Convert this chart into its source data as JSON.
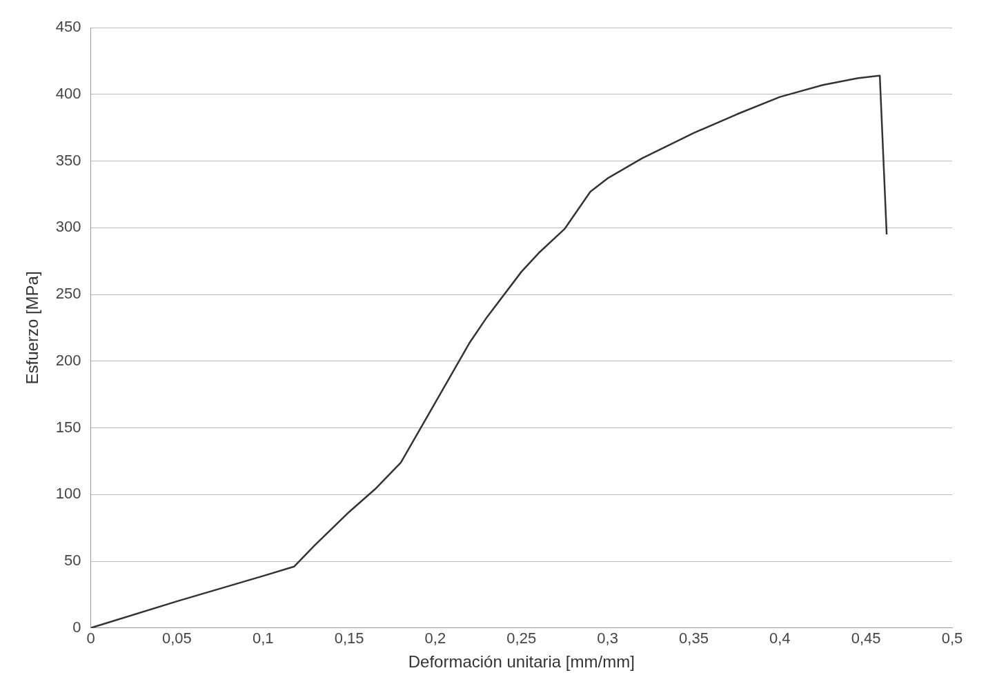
{
  "chart_data": {
    "type": "line",
    "xlabel": "Deformación unitaria [mm/mm]",
    "ylabel": "Esfuerzo [MPa]",
    "x": [
      0,
      0.05,
      0.1,
      0.118,
      0.13,
      0.15,
      0.165,
      0.18,
      0.2,
      0.22,
      0.23,
      0.25,
      0.26,
      0.275,
      0.29,
      0.3,
      0.32,
      0.35,
      0.375,
      0.4,
      0.425,
      0.445,
      0.458,
      0.462
    ],
    "series": [
      {
        "color": "#333333",
        "values": [
          0,
          20,
          39,
          46,
          62,
          87,
          104,
          124,
          169,
          214,
          233,
          267,
          281,
          299,
          327,
          337,
          352,
          371,
          385,
          398,
          407,
          412,
          414,
          295
        ]
      }
    ],
    "xlim": [
      0,
      0.5
    ],
    "xticks": [
      {
        "value": 0,
        "label": "0"
      },
      {
        "value": 0.05,
        "label": "0,05"
      },
      {
        "value": 0.1,
        "label": "0,1"
      },
      {
        "value": 0.15,
        "label": "0,15"
      },
      {
        "value": 0.2,
        "label": "0,2"
      },
      {
        "value": 0.25,
        "label": "0,25"
      },
      {
        "value": 0.3,
        "label": "0,3"
      },
      {
        "value": 0.35,
        "label": "0,35"
      },
      {
        "value": 0.4,
        "label": "0,4"
      },
      {
        "value": 0.45,
        "label": "0,45"
      },
      {
        "value": 0.5,
        "label": "0,5"
      }
    ],
    "ylim": [
      0,
      450
    ],
    "yticks": [
      0,
      50,
      100,
      150,
      200,
      250,
      300,
      350,
      400,
      450
    ],
    "grid": "y",
    "marker": "none",
    "line_style": "solid",
    "legend": false
  }
}
